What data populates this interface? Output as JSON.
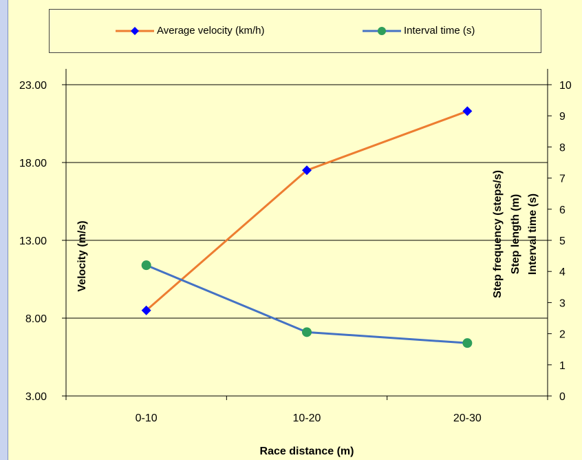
{
  "chart_data": {
    "type": "line",
    "categories": [
      "0-10",
      "10-20",
      "20-30"
    ],
    "xlabel": "Race distance (m)",
    "ylabel_left": "Velocity (m/s)",
    "ylabel_right": [
      "Step frequency (steps/s)",
      "Step length (m)",
      "Interval time (s)"
    ],
    "y_left": {
      "ticks": [
        "23.00",
        "18.00",
        "13.00",
        "8.00",
        "3.00"
      ],
      "min": 3,
      "max": 23
    },
    "y_right": {
      "ticks": [
        "10",
        "9",
        "8",
        "7",
        "6",
        "5",
        "4",
        "3",
        "2",
        "1",
        "0"
      ],
      "min": 0,
      "max": 10
    },
    "grid": true,
    "legend_position": "top",
    "series": [
      {
        "name": "Average velocity (km/h)",
        "axis": "left",
        "color": "#ed7d31",
        "marker": "diamond",
        "marker_color": "#0000ff",
        "values": [
          8.5,
          17.5,
          21.3
        ]
      },
      {
        "name": "Interval time (s)",
        "axis": "right",
        "color": "#4472c4",
        "marker": "circle",
        "marker_color": "#2e9e5b",
        "values": [
          4.2,
          2.05,
          1.7
        ]
      }
    ]
  }
}
